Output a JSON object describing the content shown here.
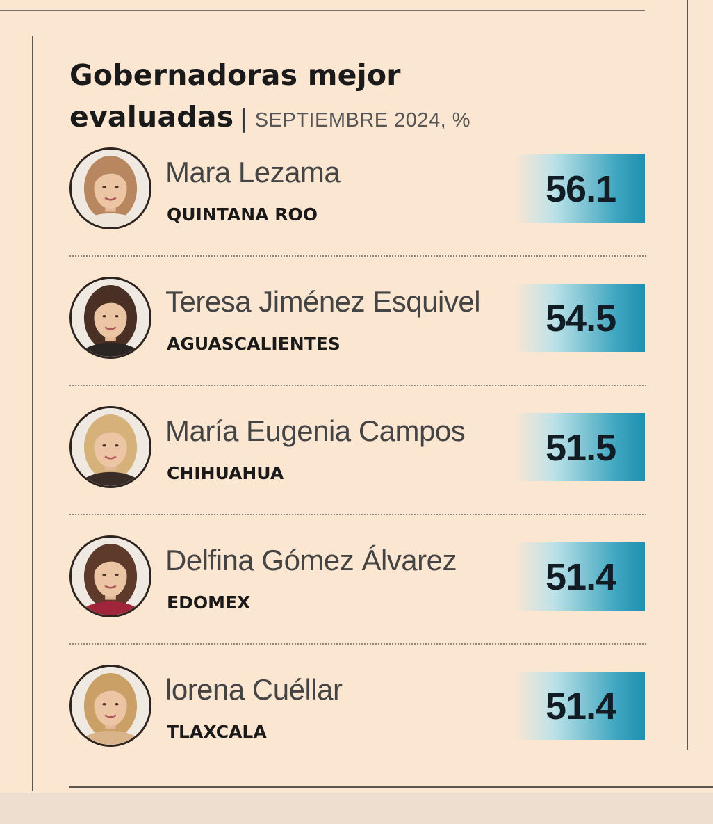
{
  "title": "Gobernadoras mejor evaluadas",
  "subtitle": "SEPTIEMBRE 2024, %",
  "separator": "|",
  "chart_data": {
    "type": "bar",
    "title": "Gobernadoras mejor evaluadas",
    "subtitle": "SEPTIEMBRE 2024, %",
    "categories": [
      "Mara Lezama",
      "Teresa Jiménez Esquivel",
      "María Eugenia Campos",
      "Delfina Gómez Álvarez",
      "lorena Cuéllar"
    ],
    "values": [
      56.1,
      54.5,
      51.5,
      51.4,
      51.4
    ]
  },
  "governors": [
    {
      "name": "Mara Lezama",
      "state": "QUINTANA ROO",
      "value": "56.1",
      "icon": "portrait-photo",
      "hair": "#b8875f",
      "top": "#efe4d8"
    },
    {
      "name": "Teresa Jiménez Esquivel",
      "state": "AGUASCALIENTES",
      "value": "54.5",
      "icon": "portrait-photo",
      "hair": "#4a3024",
      "top": "#2b2523"
    },
    {
      "name": "María Eugenia Campos",
      "state": "CHIHUAHUA",
      "value": "51.5",
      "icon": "portrait-photo",
      "hair": "#d6b27a",
      "top": "#3a2d28"
    },
    {
      "name": "Delfina Gómez Álvarez",
      "state": "EDOMEX",
      "value": "51.4",
      "icon": "portrait-photo",
      "hair": "#5e3a2a",
      "top": "#a0243a"
    },
    {
      "name": "lorena Cuéllar",
      "state": "TLAXCALA",
      "value": "51.4",
      "icon": "portrait-photo",
      "hair": "#caa067",
      "top": "#d9b48a"
    }
  ],
  "colors": {
    "background": "#fbe6d2",
    "value_gradient_end": "#1f8fb0",
    "rule": "#5e5650"
  }
}
